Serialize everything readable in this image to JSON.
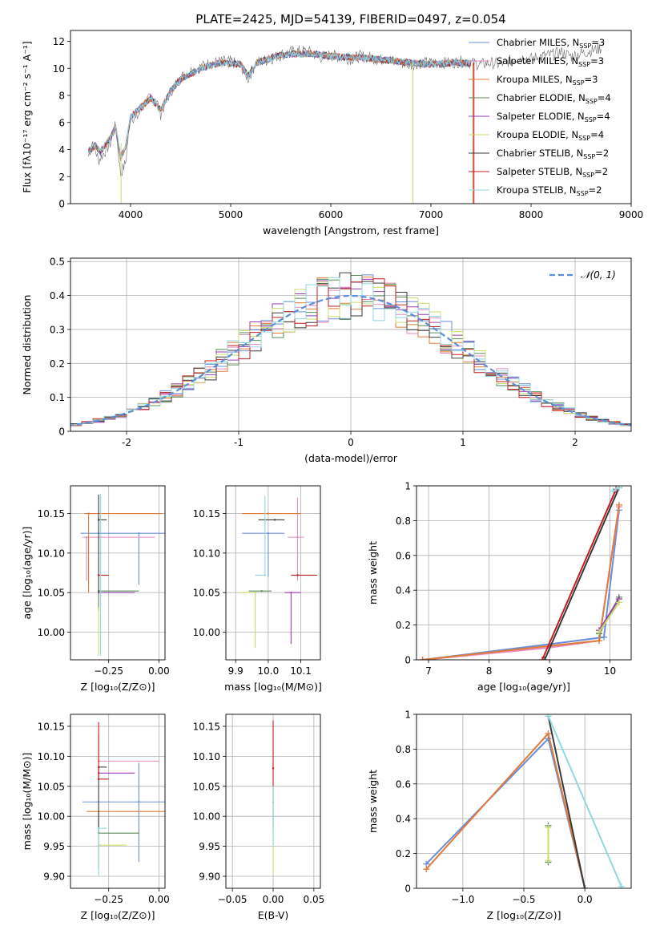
{
  "figure_title": "PLATE=2425, MJD=54139, FIBERID=0497, z=0.054",
  "colors": [
    "#6a8fd8",
    "#e88ac0",
    "#e07b39",
    "#5a8a5a",
    "#9b3fb5",
    "#c9dc6b",
    "#3a3a3a",
    "#c41e1e",
    "#8fd8e0"
  ],
  "chart_data": [
    {
      "id": "spectrum",
      "type": "line",
      "title": "PLATE=2425, MJD=54139, FIBERID=0497, z=0.054",
      "xlabel": "wavelength [Angstrom, rest frame]",
      "ylabel": "Flux [fλ10⁻¹⁷ erg cm⁻² s⁻¹ A⁻¹]",
      "xlim": [
        3400,
        9000
      ],
      "ylim": [
        0,
        12.8
      ],
      "xticks": [
        4000,
        5000,
        6000,
        7000,
        8000,
        9000
      ],
      "yticks": [
        0,
        2,
        4,
        6,
        8,
        10,
        12
      ],
      "grid": false,
      "legend_position": "top-right",
      "legend": [
        "Chabrier MILES, N_SSP=3",
        "Salpeter MILES, N_SSP=3",
        "Kroupa MILES, N_SSP=3",
        "Chabrier ELODIE, N_SSP=4",
        "Salpeter ELODIE, N_SSP=4",
        "Kroupa ELODIE, N_SSP=4",
        "Chabrier STELIB, N_SSP=2",
        "Salpeter STELIB, N_SSP=2",
        "Kroupa STELIB, N_SSP=2"
      ],
      "data_series": {
        "name": "observed",
        "color": "#808080",
        "x": [
          3580,
          3620,
          3680,
          3750,
          3800,
          3850,
          3900,
          3950,
          4000,
          4050,
          4100,
          4150,
          4200,
          4250,
          4300,
          4400,
          4500,
          4600,
          4700,
          4800,
          4900,
          5000,
          5100,
          5175,
          5250,
          5400,
          5500,
          5600,
          5700,
          5800,
          5890,
          6000,
          6100,
          6200,
          6300,
          6400,
          6500,
          6563,
          6600,
          6700,
          6800,
          6900,
          7000,
          7100,
          7200,
          7300,
          7400,
          7500,
          7600,
          7700,
          7800,
          7900,
          8000,
          8100,
          8200,
          8300,
          8400,
          8500,
          8600,
          8700
        ],
        "y": [
          3.5,
          4.6,
          3.2,
          3.9,
          4.5,
          5.8,
          2.2,
          3.0,
          6.6,
          6.2,
          6.8,
          7.5,
          7.8,
          7.9,
          6.6,
          8.3,
          9.3,
          9.8,
          10.1,
          10.4,
          10.5,
          10.5,
          10.2,
          9.2,
          10.4,
          10.7,
          11.0,
          11.2,
          11.3,
          11.2,
          10.8,
          11.0,
          10.8,
          10.7,
          10.9,
          10.8,
          10.6,
          10.9,
          10.6,
          10.4,
          10.3,
          10.4,
          10.4,
          10.4,
          10.4,
          10.5,
          10.4,
          10.3,
          10.4,
          10.3,
          10.6,
          10.8,
          10.7,
          10.9,
          11.0,
          11.2,
          10.9,
          11.1,
          11.3,
          11.5
        ]
      },
      "model_series": [
        {
          "x": [
            3580,
            3650,
            3700,
            3800,
            3850,
            3900,
            3950,
            4000,
            4100,
            4200,
            4300,
            4400,
            4500,
            4700,
            4900,
            5100,
            5175,
            5250,
            5500,
            5800,
            6000,
            6300,
            6563,
            6800,
            7000,
            7200,
            7400
          ],
          "y": [
            3.9,
            4.3,
            3.8,
            4.9,
            5.7,
            3.4,
            4.2,
            6.4,
            7.1,
            7.8,
            6.9,
            8.3,
            9.2,
            10.0,
            10.4,
            10.3,
            9.4,
            10.4,
            11.0,
            11.1,
            10.9,
            10.8,
            10.6,
            10.4,
            10.3,
            10.4,
            10.4
          ]
        }
      ],
      "annotations": []
    },
    {
      "id": "residuals",
      "type": "histogram",
      "xlabel": "(data-model)/error",
      "ylabel": "Normed distribution",
      "xlim": [
        -2.5,
        2.5
      ],
      "ylim": [
        0,
        0.51
      ],
      "xticks": [
        -2,
        -1,
        0,
        1,
        2
      ],
      "yticks": [
        0.0,
        0.1,
        0.2,
        0.3,
        0.4,
        0.5
      ],
      "grid": true,
      "legend_position": "top-right",
      "legend": [
        "𝒩(0, 1)"
      ],
      "gaussian": {
        "mean": 0,
        "sigma": 1,
        "color": "#5b8fd8"
      },
      "bin_width": 0.1
    },
    {
      "id": "Z-age",
      "type": "errorbar",
      "xlabel": "Z [log₁₀(Z/Z⊙)]",
      "ylabel": "age  [log₁₀(age/yr)]",
      "xlim": [
        -0.44,
        0.03
      ],
      "ylim": [
        9.965,
        10.185
      ],
      "xticks": [
        -0.25,
        0.0
      ],
      "xtick_labels": [
        "−0.25",
        "0.00"
      ],
      "yticks": [
        10.0,
        10.05,
        10.1,
        10.15
      ],
      "ytick_labels": [
        "10.00",
        "10.05",
        "10.10",
        "10.15"
      ],
      "grid": true,
      "points": [
        {
          "x": -0.1,
          "y": 10.125,
          "xerr": [
            0.29,
            0.3
          ],
          "yerr": [
            0.065,
            0.0
          ],
          "c": 0
        },
        {
          "x": -0.36,
          "y": 10.12,
          "xerr": [
            0.02,
            0.34
          ],
          "yerr": [
            0.055,
            0.0
          ],
          "c": 1
        },
        {
          "x": -0.35,
          "y": 10.15,
          "xerr": [
            0.02,
            0.37
          ],
          "yerr": [
            0.1,
            0.0
          ],
          "c": 2
        },
        {
          "x": -0.3,
          "y": 10.052,
          "xerr": [
            0.0,
            0.2
          ],
          "yerr": [
            0.025,
            0.0
          ],
          "c": 3
        },
        {
          "x": -0.3,
          "y": 10.05,
          "xerr": [
            0.0,
            0.18
          ],
          "yerr": [
            0.0,
            0.0
          ],
          "c": 4
        },
        {
          "x": -0.3,
          "y": 10.03,
          "xerr": [
            0.0,
            0.0
          ],
          "yerr": [
            0.06,
            0.0
          ],
          "c": 5
        },
        {
          "x": -0.3,
          "y": 10.142,
          "xerr": [
            0.0,
            0.04
          ],
          "yerr": [
            0.092,
            0.032
          ],
          "c": 6
        },
        {
          "x": -0.3,
          "y": 10.072,
          "xerr": [
            0.0,
            0.05
          ],
          "yerr": [
            0.0,
            0.0
          ],
          "c": 7
        },
        {
          "x": -0.29,
          "y": 10.1,
          "xerr": [
            0.0,
            0.0
          ],
          "yerr": [
            0.13,
            0.075
          ],
          "c": 8
        }
      ]
    },
    {
      "id": "mass-age",
      "type": "errorbar",
      "xlabel": "mass [log₁₀(M/M⊙)]",
      "ylabel": "",
      "xlim": [
        9.87,
        10.16
      ],
      "ylim": [
        9.965,
        10.185
      ],
      "xticks": [
        9.9,
        10.0,
        10.1
      ],
      "xtick_labels": [
        "9.9",
        "10.0",
        "10.1"
      ],
      "yticks": [
        10.0,
        10.05,
        10.1,
        10.15
      ],
      "ytick_labels": [
        "10.00",
        "10.05",
        "10.10",
        "10.15"
      ],
      "grid": true,
      "points": [
        {
          "x": 10.0,
          "y": 10.125,
          "xerr": [
            0.08,
            0.05
          ],
          "yerr": [
            0.055,
            0.0
          ],
          "c": 0
        },
        {
          "x": 10.09,
          "y": 10.12,
          "xerr": [
            0.03,
            0.02
          ],
          "yerr": [
            0.055,
            0.05
          ],
          "c": 1
        },
        {
          "x": 10.0,
          "y": 10.15,
          "xerr": [
            0.08,
            0.1
          ],
          "yerr": [
            0.0,
            0.0
          ],
          "c": 2
        },
        {
          "x": 9.98,
          "y": 10.052,
          "xerr": [
            0.04,
            0.03
          ],
          "yerr": [
            0.0,
            0.0
          ],
          "c": 3
        },
        {
          "x": 10.07,
          "y": 10.05,
          "xerr": [
            0.02,
            0.03
          ],
          "yerr": [
            0.065,
            0.0
          ],
          "c": 4
        },
        {
          "x": 9.96,
          "y": 10.05,
          "xerr": [
            0.05,
            0.0
          ],
          "yerr": [
            0.07,
            0.0
          ],
          "c": 5
        },
        {
          "x": 10.02,
          "y": 10.142,
          "xerr": [
            0.05,
            0.03
          ],
          "yerr": [
            0.0,
            0.0
          ],
          "c": 6
        },
        {
          "x": 10.09,
          "y": 10.072,
          "xerr": [
            0.02,
            0.06
          ],
          "yerr": [
            0.0,
            0.0
          ],
          "c": 7
        },
        {
          "x": 9.99,
          "y": 10.072,
          "xerr": [
            0.03,
            0.0
          ],
          "yerr": [
            0.0,
            0.1
          ],
          "c": 8
        }
      ]
    },
    {
      "id": "age-weight",
      "type": "line",
      "xlabel": "age  [log₁₀(age/yr)]",
      "ylabel": "mass weight",
      "xlim": [
        6.8,
        10.35
      ],
      "ylim": [
        0,
        1.0
      ],
      "xticks": [
        7,
        8,
        9,
        10
      ],
      "yticks": [
        0.0,
        0.2,
        0.4,
        0.6,
        0.8,
        1.0
      ],
      "grid": true,
      "series": [
        {
          "c": 0,
          "x": [
            6.9,
            9.0,
            9.9,
            10.15
          ],
          "y": [
            0.0,
            0.09,
            0.13,
            0.86
          ]
        },
        {
          "c": 1,
          "x": [
            6.9,
            9.0,
            9.82,
            10.15
          ],
          "y": [
            0.0,
            0.07,
            0.11,
            0.88
          ]
        },
        {
          "c": 2,
          "x": [
            6.9,
            9.0,
            9.82,
            10.15
          ],
          "y": [
            0.0,
            0.08,
            0.11,
            0.89
          ]
        },
        {
          "c": 3,
          "x": [
            9.82,
            10.15
          ],
          "y": [
            0.15,
            0.36
          ]
        },
        {
          "c": 4,
          "x": [
            9.82,
            10.15
          ],
          "y": [
            0.17,
            0.35
          ]
        },
        {
          "c": 5,
          "x": [
            9.82,
            10.15
          ],
          "y": [
            0.16,
            0.33
          ]
        },
        {
          "c": 6,
          "x": [
            8.92,
            10.15
          ],
          "y": [
            0.0,
            0.99
          ]
        },
        {
          "c": 7,
          "x": [
            8.88,
            10.1
          ],
          "y": [
            0.0,
            0.98
          ]
        },
        {
          "c": 8,
          "x": [
            10.05,
            10.15
          ],
          "y": [
            0.97,
            0.99
          ]
        }
      ]
    },
    {
      "id": "Z-mass",
      "type": "errorbar",
      "xlabel": "Z [log₁₀(Z/Z⊙)]",
      "ylabel": "mass [log₁₀(M/M⊙)]",
      "xlim": [
        -0.44,
        0.03
      ],
      "ylim": [
        9.88,
        10.17
      ],
      "xticks": [
        -0.25,
        0.0
      ],
      "xtick_labels": [
        "−0.25",
        "0.00"
      ],
      "yticks": [
        9.9,
        9.95,
        10.0,
        10.05,
        10.1,
        10.15
      ],
      "ytick_labels": [
        "9.90",
        "9.95",
        "10.00",
        "10.05",
        "10.10",
        "10.15"
      ],
      "grid": true,
      "points": [
        {
          "x": -0.1,
          "y": 10.024,
          "xerr": [
            0.28,
            0.3
          ],
          "yerr": [
            0.1,
            0.065
          ],
          "c": 0
        },
        {
          "x": -0.3,
          "y": 10.092,
          "xerr": [
            0.0,
            0.3
          ],
          "yerr": [
            0.0,
            0.045
          ],
          "c": 1
        },
        {
          "x": -0.3,
          "y": 10.008,
          "xerr": [
            0.06,
            0.33
          ],
          "yerr": [
            0.095,
            0.0
          ],
          "c": 2
        },
        {
          "x": -0.3,
          "y": 9.972,
          "xerr": [
            0.0,
            0.2
          ],
          "yerr": [
            0.0,
            0.0
          ],
          "c": 3
        },
        {
          "x": -0.3,
          "y": 10.072,
          "xerr": [
            0.0,
            0.18
          ],
          "yerr": [
            0.0,
            0.0
          ],
          "c": 4
        },
        {
          "x": -0.3,
          "y": 9.952,
          "xerr": [
            0.0,
            0.14
          ],
          "yerr": [
            0.0,
            0.0
          ],
          "c": 5
        },
        {
          "x": -0.3,
          "y": 10.082,
          "xerr": [
            0.0,
            0.04
          ],
          "yerr": [
            0.11,
            0.0
          ],
          "c": 6
        },
        {
          "x": -0.3,
          "y": 10.062,
          "xerr": [
            0.0,
            0.05
          ],
          "yerr": [
            0.0,
            0.095
          ],
          "c": 7
        },
        {
          "x": -0.3,
          "y": 9.98,
          "xerr": [
            0.0,
            0.04
          ],
          "yerr": [
            0.08,
            0.0
          ],
          "c": 8
        }
      ]
    },
    {
      "id": "ebv-mass",
      "type": "errorbar",
      "xlabel": "E(B-V)",
      "ylabel": "",
      "xlim": [
        -0.058,
        0.058
      ],
      "ylim": [
        9.88,
        10.17
      ],
      "xticks": [
        -0.05,
        0.0,
        0.05
      ],
      "xtick_labels": [
        "−0.05",
        "0.00",
        "0.05"
      ],
      "yticks": [
        9.9,
        9.95,
        10.0,
        10.05,
        10.1,
        10.15
      ],
      "ytick_labels": [
        "9.90",
        "9.95",
        "10.00",
        "10.05",
        "10.10",
        "10.15"
      ],
      "grid": true,
      "points": [
        {
          "x": 0.0,
          "y": 10.024,
          "xerr": [
            0,
            0
          ],
          "yerr": [
            0.12,
            0.03
          ],
          "c": 5
        },
        {
          "x": 0.0,
          "y": 10.08,
          "xerr": [
            0,
            0
          ],
          "yerr": [
            0.1,
            0.08
          ],
          "c": 7
        },
        {
          "x": 0.0,
          "y": 10.0,
          "xerr": [
            0,
            0
          ],
          "yerr": [
            0.05,
            0.05
          ],
          "c": 8
        }
      ]
    },
    {
      "id": "Z-weight",
      "type": "line",
      "xlabel": "Z [log₁₀(Z/Z⊙)]",
      "ylabel": "mass weight",
      "xlim": [
        -1.38,
        0.38
      ],
      "ylim": [
        0,
        1.0
      ],
      "xticks": [
        -1.0,
        -0.5,
        0.0
      ],
      "xtick_labels": [
        "−1.0",
        "−0.5",
        "0.0"
      ],
      "yticks": [
        0.0,
        0.2,
        0.4,
        0.6,
        0.8,
        1.0
      ],
      "grid": true,
      "series": [
        {
          "c": 0,
          "x": [
            -1.3,
            -0.3,
            0.0
          ],
          "y": [
            0.14,
            0.86,
            0.0
          ]
        },
        {
          "c": 2,
          "x": [
            -1.3,
            -0.3,
            0.0
          ],
          "y": [
            0.11,
            0.89,
            0.0
          ]
        },
        {
          "c": 6,
          "x": [
            -0.3,
            0.0
          ],
          "y": [
            0.99,
            0.0
          ]
        },
        {
          "c": 8,
          "x": [
            -0.3,
            0.3
          ],
          "y": [
            0.99,
            0.01
          ]
        },
        {
          "c": 3,
          "x": [
            -0.3,
            -0.3
          ],
          "y": [
            0.15,
            0.36
          ]
        },
        {
          "c": 5,
          "x": [
            -0.3,
            -0.3
          ],
          "y": [
            0.16,
            0.35
          ]
        }
      ]
    }
  ]
}
